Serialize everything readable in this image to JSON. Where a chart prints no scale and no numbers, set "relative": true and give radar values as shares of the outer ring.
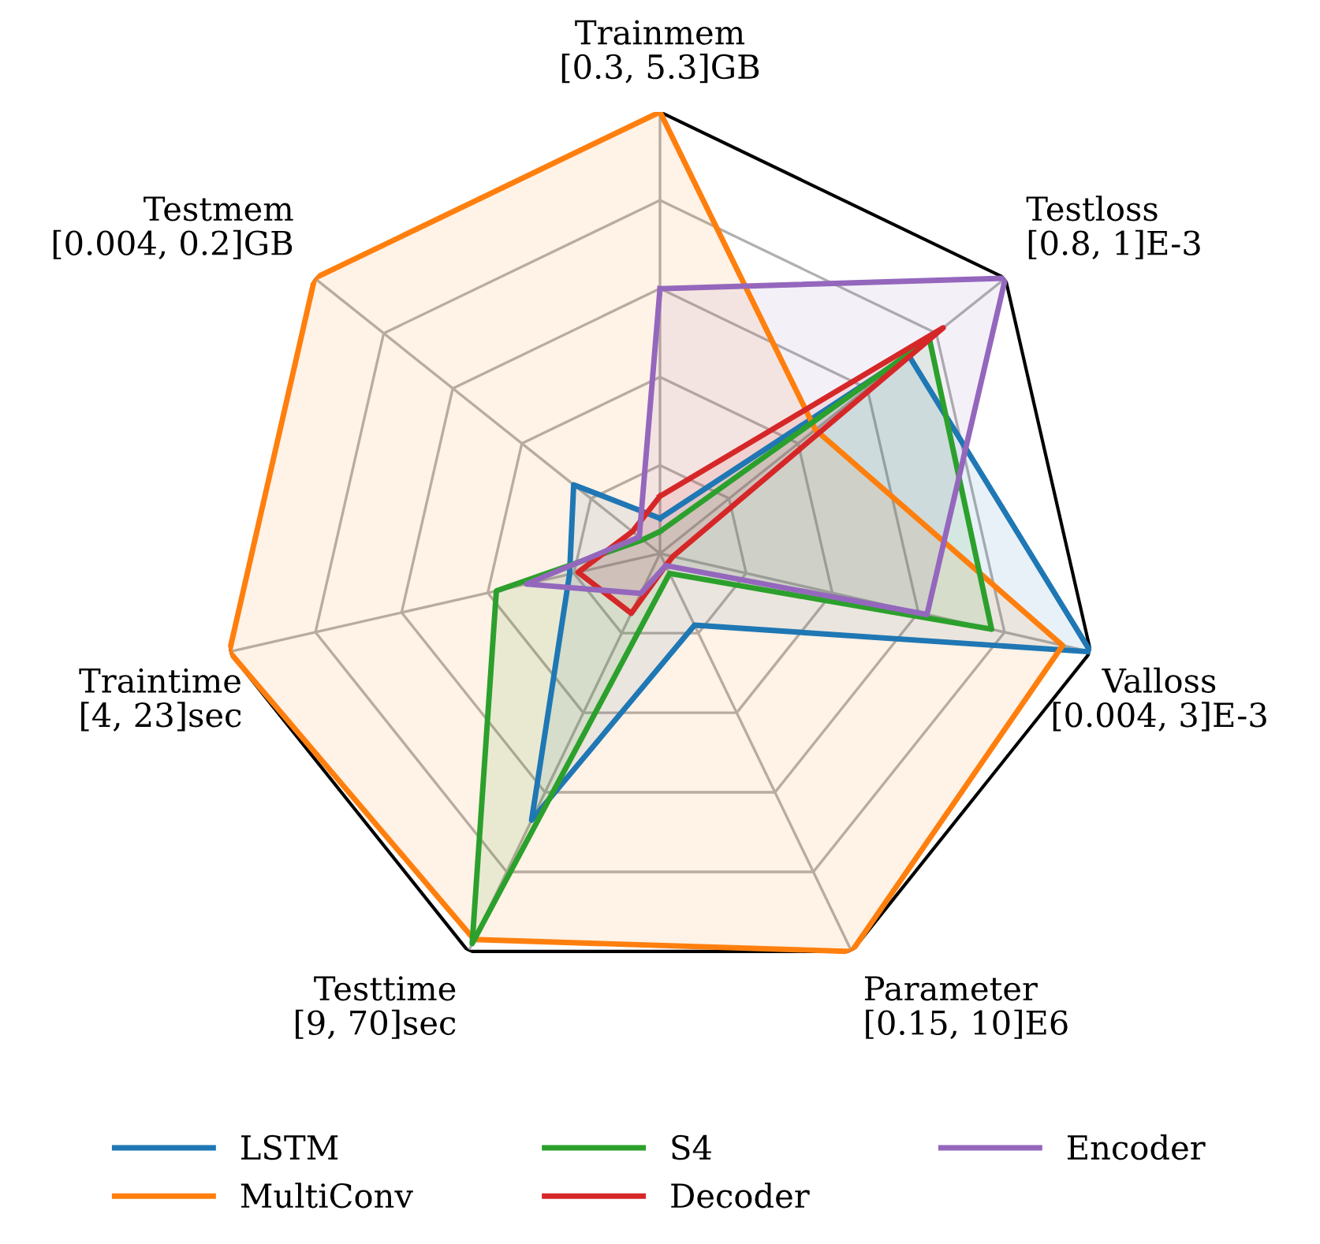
{
  "chart_data": {
    "type": "radar",
    "relative": true,
    "grid": true,
    "legend": "bottom",
    "marker": "none",
    "line_style": "solid",
    "categories": [
      "Trainmem\n[0.3, 5.3]GB",
      "Testloss\n[0.8, 1]E-3",
      "Valloss\n[0.004, 3]E-3",
      "Parameter\n[0.15, 10]E6",
      "Testtime\n[9, 70]sec",
      "Traintime\n[4, 23]sec",
      "Testmem\n[0.004, 0.2]GB"
    ],
    "series": [
      {
        "name": "LSTM",
        "color": "#1f77b4",
        "values": [
          0.08,
          0.72,
          1.0,
          0.18,
          0.67,
          0.21,
          0.25
        ]
      },
      {
        "name": "MultiConv",
        "color": "#ff7f0e",
        "values": [
          1.0,
          0.45,
          0.935,
          1.0,
          0.97,
          1.0,
          1.0
        ]
      },
      {
        "name": "S4",
        "color": "#2ca02c",
        "values": [
          0.05,
          0.78,
          0.77,
          0.05,
          0.98,
          0.38,
          0.05
        ]
      },
      {
        "name": "Decoder",
        "color": "#d62728",
        "values": [
          0.13,
          0.82,
          0.03,
          0.03,
          0.15,
          0.19,
          0.08
        ]
      },
      {
        "name": "Encoder",
        "color": "#9467bd",
        "values": [
          0.6,
          1.0,
          0.62,
          0.03,
          0.1,
          0.31,
          0.06
        ]
      }
    ]
  }
}
